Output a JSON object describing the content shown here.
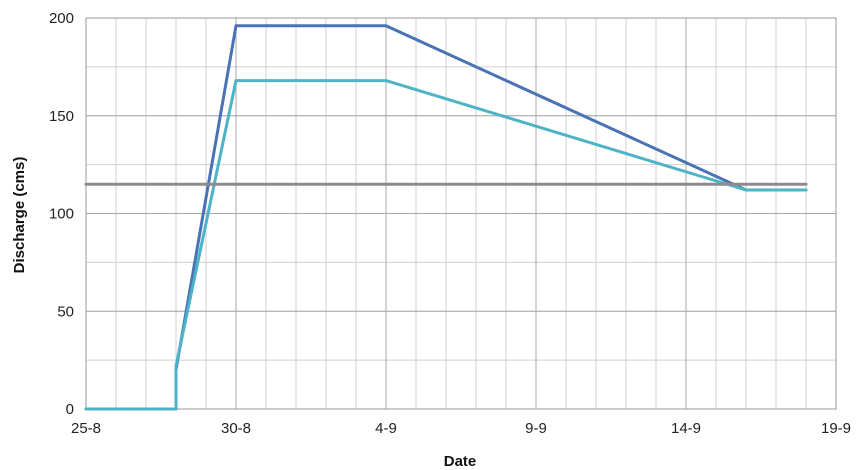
{
  "chart_data": {
    "type": "line",
    "title": "",
    "xlabel": "Date",
    "ylabel": "Discharge (cms)",
    "x_ticks": [
      "25-8",
      "30-8",
      "4-9",
      "9-9",
      "14-9",
      "19-9"
    ],
    "xlim": [
      "25-8",
      "19-9"
    ],
    "ylim": [
      0,
      200
    ],
    "y_ticks": [
      0,
      50,
      100,
      150,
      200
    ],
    "grid": true,
    "series": [
      {
        "color": "#4a73b5",
        "points": [
          {
            "x": "25-8",
            "y": 0
          },
          {
            "x": "28-8",
            "y": 0
          },
          {
            "x": "28-8",
            "y": 20
          },
          {
            "x": "30-8",
            "y": 196
          },
          {
            "x": "4-9",
            "y": 196
          },
          {
            "x": "16-9",
            "y": 112
          },
          {
            "x": "18-9",
            "y": 112
          }
        ]
      },
      {
        "color": "#4db3c6",
        "points": [
          {
            "x": "25-8",
            "y": 0
          },
          {
            "x": "28-8",
            "y": 0
          },
          {
            "x": "28-8",
            "y": 22
          },
          {
            "x": "30-8",
            "y": 168
          },
          {
            "x": "4-9",
            "y": 168
          },
          {
            "x": "16-9",
            "y": 112
          },
          {
            "x": "18-9",
            "y": 112
          }
        ]
      },
      {
        "color": "#8c8c8c",
        "points": [
          {
            "x": "25-8",
            "y": 115
          },
          {
            "x": "18-9",
            "y": 115
          }
        ]
      }
    ]
  }
}
